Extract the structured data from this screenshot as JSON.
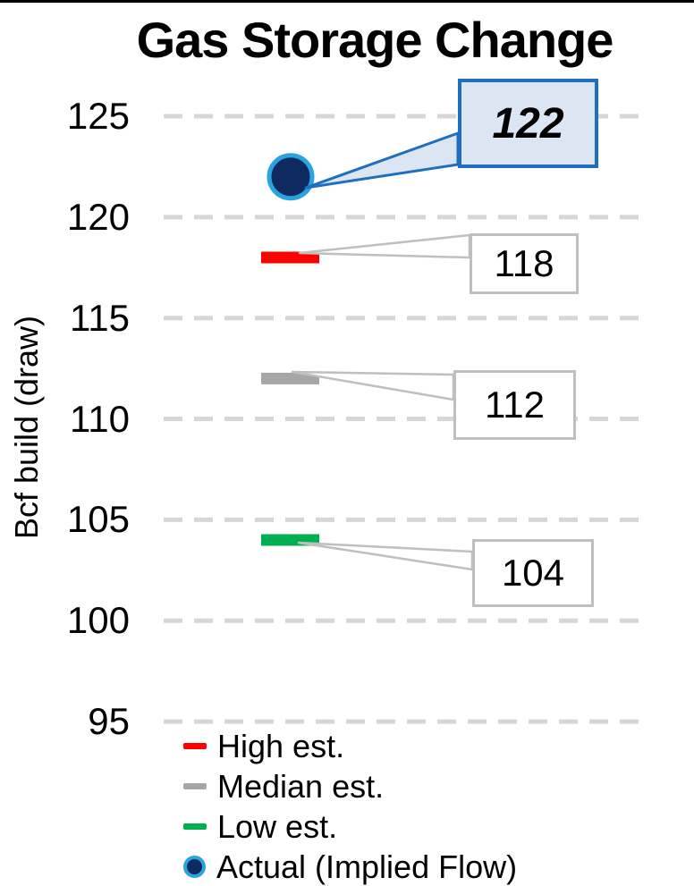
{
  "title": "Gas Storage Change",
  "colors": {
    "grid": "#d6d6d6",
    "leader": "#bfbfbf",
    "callout_fill": "#dbe6f2",
    "callout_border": "#1f6fc0",
    "text": "#000000",
    "top_border": "#000000"
  },
  "chart_data": {
    "type": "scatter",
    "title": "Gas Storage Change",
    "xlabel": "",
    "ylabel": "Bcf build (draw)",
    "ylim": [
      92.5,
      127.5
    ],
    "yticks": [
      125,
      120,
      115,
      110,
      105,
      100,
      95
    ],
    "grid": "horizontal-dashed",
    "legend_position": "bottom-left",
    "series": [
      {
        "name": "High est.",
        "value": 118,
        "marker": "dash",
        "color": "#ff0000"
      },
      {
        "name": "Median est.",
        "value": 112,
        "marker": "dash",
        "color": "#a6a6a6"
      },
      {
        "name": "Low est.",
        "value": 104,
        "marker": "dash",
        "color": "#00b050"
      },
      {
        "name": "Actual (Implied Flow)",
        "value": 122,
        "marker": "circle",
        "color": "#0e2a5f",
        "ring_color": "#29a4e1"
      }
    ],
    "data_labels": [
      {
        "series": "High est.",
        "text": "118",
        "style": "plain"
      },
      {
        "series": "Median est.",
        "text": "112",
        "style": "plain"
      },
      {
        "series": "Low est.",
        "text": "104",
        "style": "plain"
      },
      {
        "series": "Actual (Implied Flow)",
        "text": "122",
        "style": "accent"
      }
    ]
  }
}
